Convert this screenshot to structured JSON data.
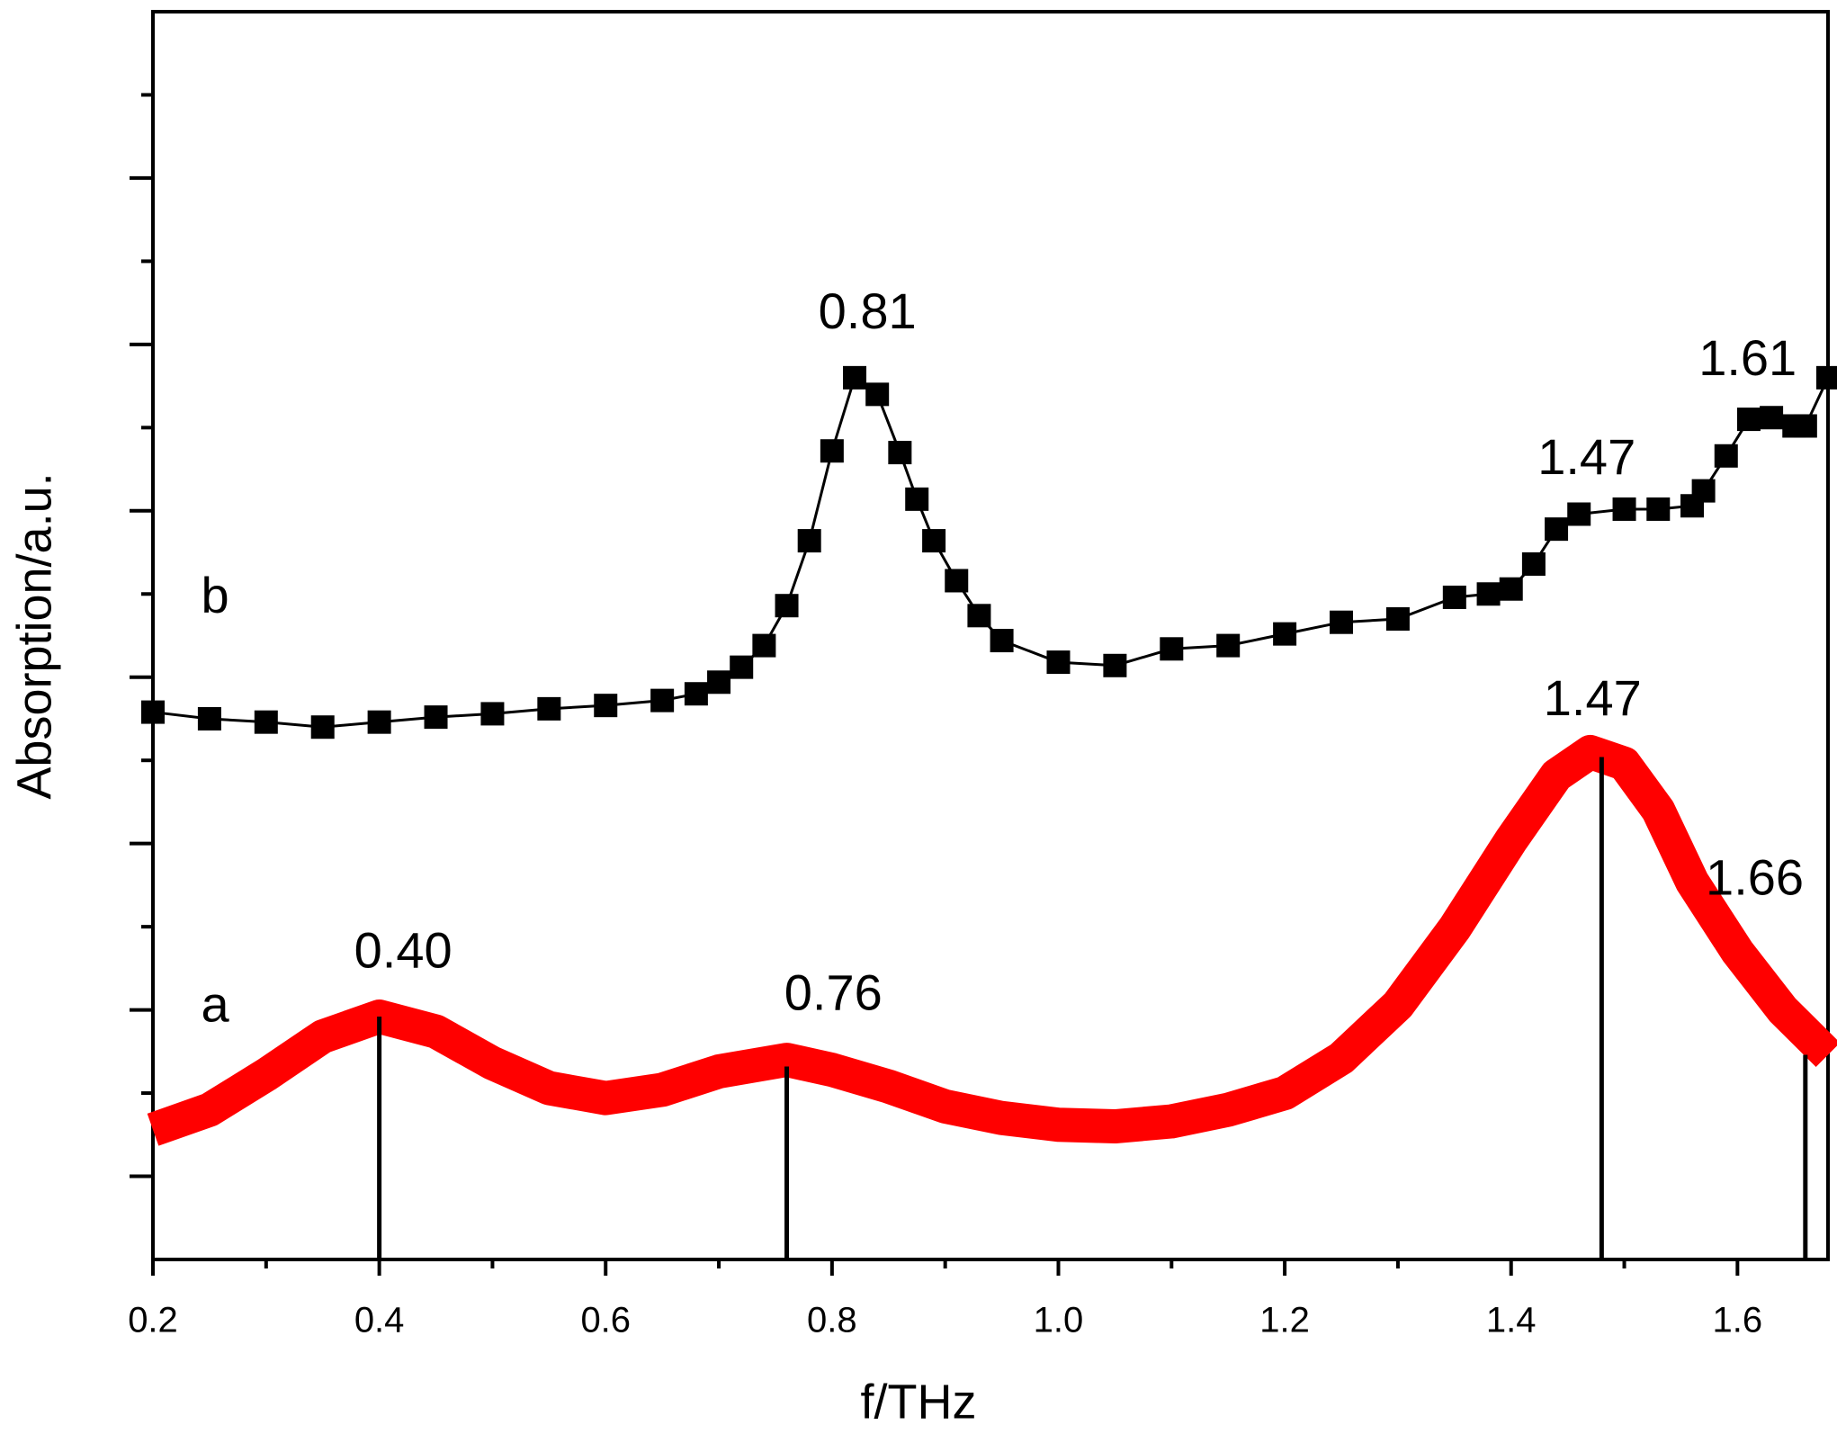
{
  "chart_data": {
    "type": "line",
    "xlabel": "f/THz",
    "ylabel": "Absorption/a.u.",
    "xlim": [
      0.2,
      1.68
    ],
    "xticks": [
      0.2,
      0.4,
      0.6,
      0.8,
      {
        "value": 1,
        "label": "1.0"
      },
      1.2,
      1.4,
      1.6
    ],
    "xticks_minor": [
      0.3,
      0.5,
      0.7,
      0.9,
      1.1,
      1.3,
      1.5
    ],
    "ylim": [
      0,
      7.5
    ],
    "yticks": [
      0.5,
      1.5,
      2.5,
      3.5,
      4.5,
      5.5,
      6.5
    ],
    "yticks_minor": [
      1,
      2,
      3,
      4,
      5,
      6,
      7
    ],
    "show_ytick_labels": false,
    "series": [
      {
        "name": "a",
        "color": "#ff0000",
        "style": "thick-line",
        "x": [
          0.2,
          0.25,
          0.3,
          0.35,
          0.4,
          0.45,
          0.5,
          0.55,
          0.6,
          0.65,
          0.7,
          0.76,
          0.8,
          0.85,
          0.9,
          0.95,
          1.0,
          1.05,
          1.1,
          1.15,
          1.2,
          1.25,
          1.3,
          1.35,
          1.4,
          1.44,
          1.47,
          1.5,
          1.53,
          1.56,
          1.6,
          1.64,
          1.68
        ],
        "values": [
          0.78,
          0.9,
          1.11,
          1.34,
          1.46,
          1.37,
          1.18,
          1.03,
          0.97,
          1.02,
          1.13,
          1.2,
          1.14,
          1.04,
          0.92,
          0.85,
          0.81,
          0.8,
          0.83,
          0.9,
          1.0,
          1.21,
          1.53,
          1.99,
          2.52,
          2.91,
          3.05,
          2.98,
          2.7,
          2.27,
          1.85,
          1.5,
          1.23
        ]
      },
      {
        "name": "b",
        "color": "#000000",
        "style": "square-markers",
        "x": [
          0.2,
          0.25,
          0.3,
          0.35,
          0.4,
          0.45,
          0.5,
          0.55,
          0.6,
          0.65,
          0.68,
          0.7,
          0.72,
          0.74,
          0.76,
          0.78,
          0.8,
          0.82,
          0.84,
          0.86,
          0.875,
          0.89,
          0.91,
          0.93,
          0.95,
          1.0,
          1.05,
          1.1,
          1.15,
          1.2,
          1.25,
          1.3,
          1.35,
          1.38,
          1.4,
          1.42,
          1.44,
          1.46,
          1.5,
          1.53,
          1.56,
          1.57,
          1.59,
          1.61,
          1.63,
          1.65,
          1.66,
          1.68
        ],
        "values": [
          3.29,
          3.25,
          3.23,
          3.2,
          3.23,
          3.26,
          3.28,
          3.31,
          3.33,
          3.36,
          3.4,
          3.47,
          3.56,
          3.69,
          3.93,
          4.32,
          4.86,
          5.3,
          5.2,
          4.85,
          4.57,
          4.32,
          4.08,
          3.87,
          3.72,
          3.59,
          3.57,
          3.67,
          3.69,
          3.76,
          3.83,
          3.85,
          3.98,
          4.0,
          4.03,
          4.18,
          4.39,
          4.48,
          4.51,
          4.51,
          4.53,
          4.62,
          4.83,
          5.05,
          5.06,
          5.01,
          5.01,
          5.3
        ]
      }
    ],
    "drop_lines": {
      "x": [
        0.4,
        0.76,
        1.48,
        1.66
      ],
      "values": [
        1.46,
        1.16,
        3.02,
        1.23
      ]
    },
    "annotations": [
      "0.81",
      "1.61",
      "1.47",
      "b",
      "1.47",
      "1.66",
      "0.40",
      "a",
      "0.76"
    ]
  }
}
